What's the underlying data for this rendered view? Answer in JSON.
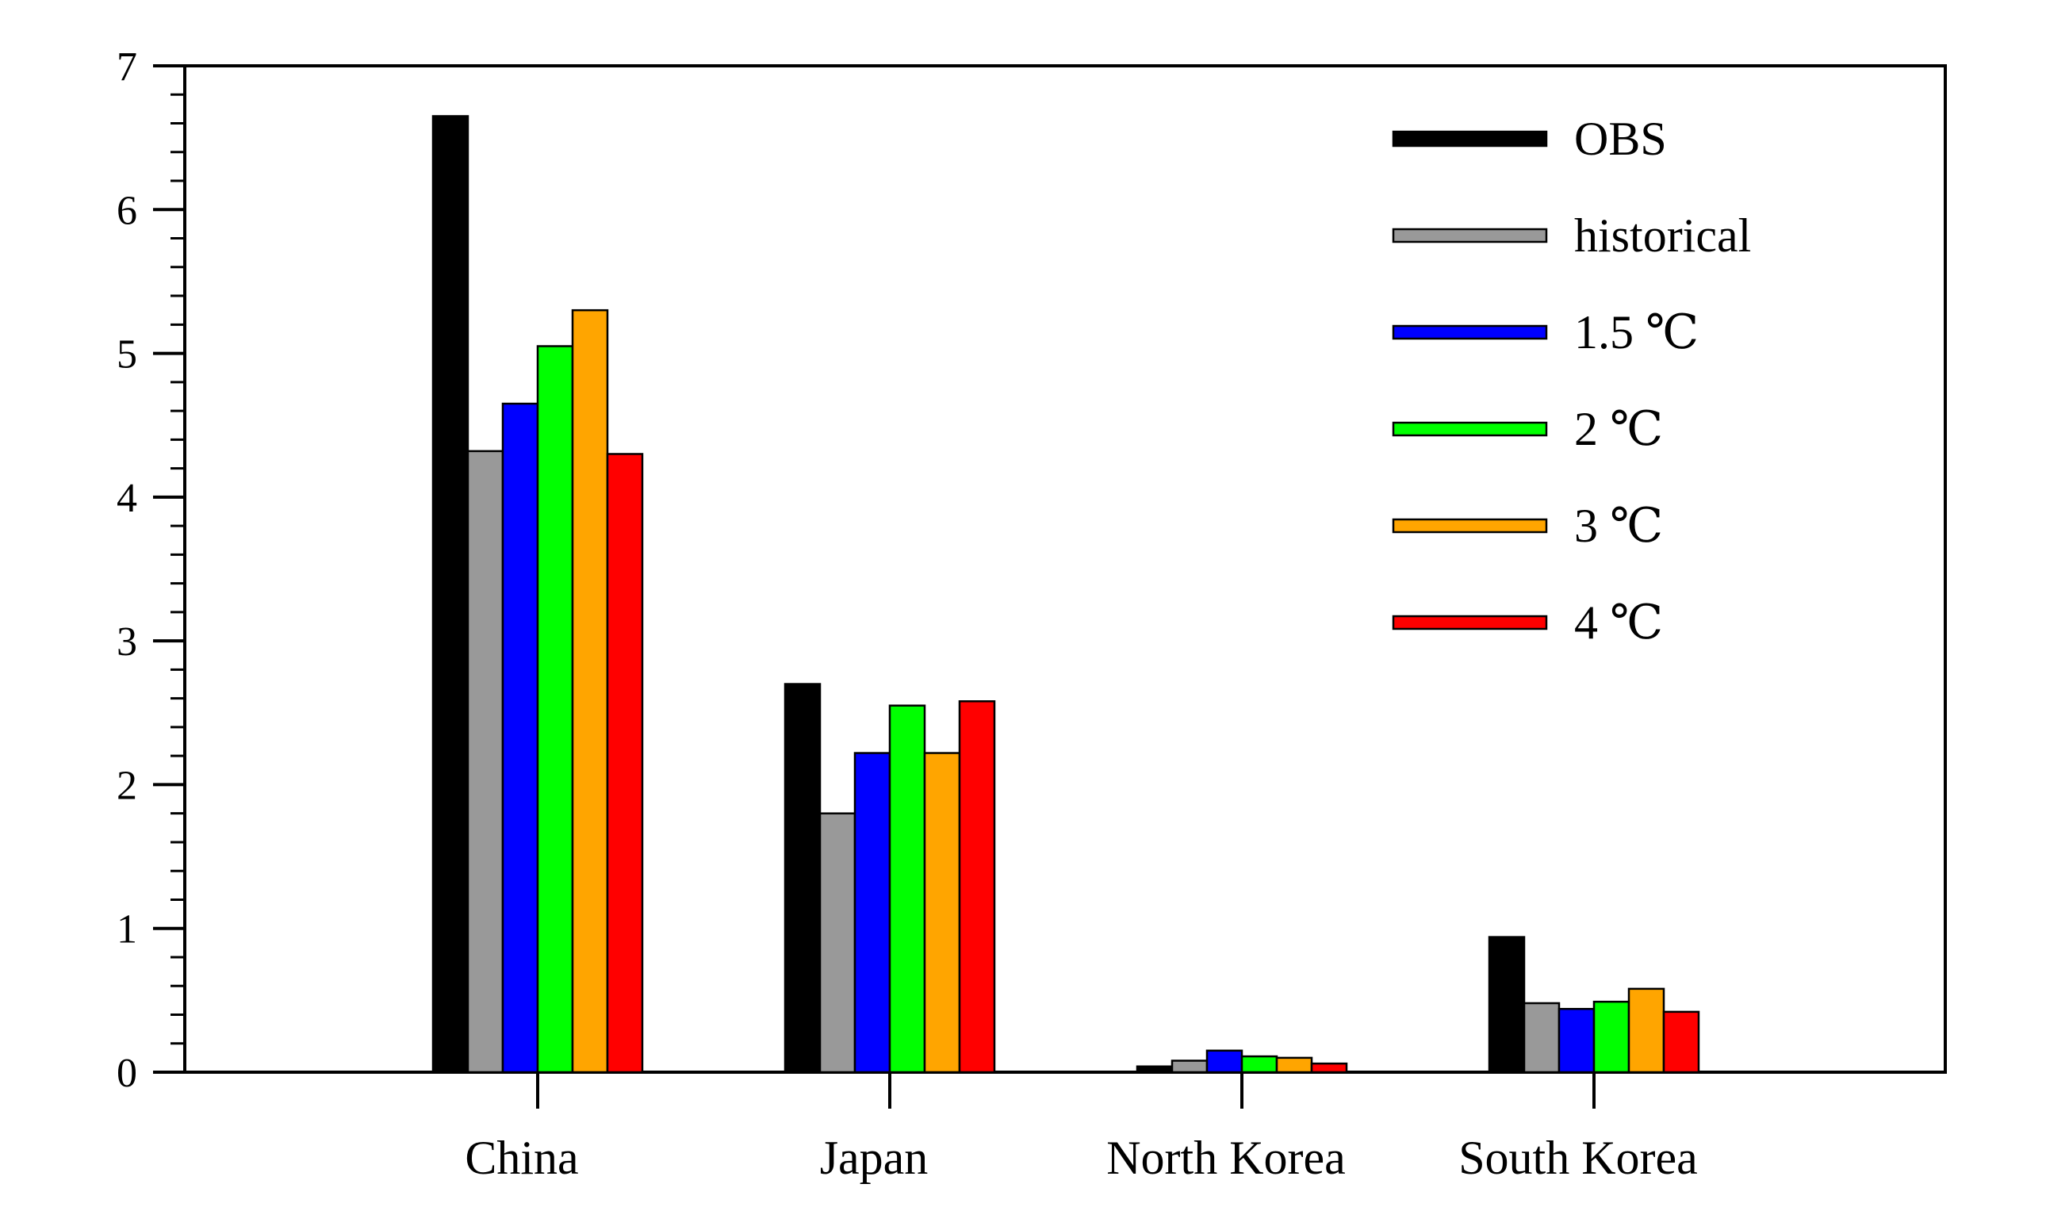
{
  "chart_data": {
    "type": "bar",
    "title": "",
    "xlabel": "",
    "ylabel": "",
    "ylim": [
      0,
      7
    ],
    "yticks": [
      0,
      1,
      2,
      3,
      4,
      5,
      6,
      7
    ],
    "grid": false,
    "legend_position": "top-right",
    "categories": [
      "China",
      "Japan",
      "North Korea",
      "South Korea"
    ],
    "series": [
      {
        "name": "OBS",
        "color": "#000000",
        "values": [
          6.65,
          2.7,
          0.04,
          0.94
        ]
      },
      {
        "name": "historical",
        "color": "#999999",
        "values": [
          4.32,
          1.8,
          0.08,
          0.48
        ]
      },
      {
        "name": "1.5 ℃",
        "color": "#0000ff",
        "values": [
          4.65,
          2.22,
          0.15,
          0.44
        ]
      },
      {
        "name": "2 ℃",
        "color": "#00ff00",
        "values": [
          5.05,
          2.55,
          0.11,
          0.49
        ]
      },
      {
        "name": "3 ℃",
        "color": "#ffa500",
        "values": [
          5.3,
          2.22,
          0.1,
          0.58
        ]
      },
      {
        "name": "4 ℃",
        "color": "#ff0000",
        "values": [
          4.3,
          2.58,
          0.06,
          0.42
        ]
      }
    ]
  }
}
